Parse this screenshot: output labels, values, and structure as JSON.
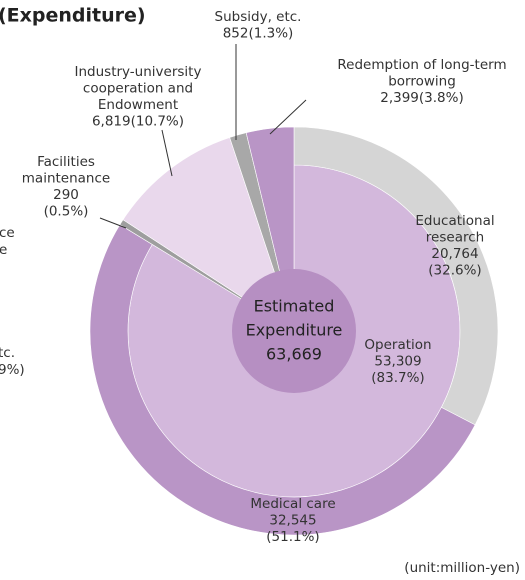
{
  "title": "(Expenditure)",
  "unit_note": "(unit:million-yen)",
  "clipped_labels": [
    "ce",
    "e",
    "tc.",
    "9%)"
  ],
  "chart_data": {
    "type": "pie",
    "center": {
      "name": [
        "Estimated",
        "Expenditure"
      ],
      "value": 63669,
      "value_label": "63,669",
      "color": "#b68fc2"
    },
    "slices": [
      {
        "name": [
          "Operation"
        ],
        "value": 53309,
        "value_label": "53,309",
        "percent": 83.7,
        "percent_label": "(83.7%)",
        "color": "#d3b8dc",
        "children": [
          {
            "name": [
              "Educational",
              "research"
            ],
            "value": 20764,
            "value_label": "20,764",
            "percent": 32.6,
            "percent_label": "(32.6%)",
            "color": "#d5d5d5"
          },
          {
            "name": [
              "Medical care"
            ],
            "value": 32545,
            "value_label": "32,545",
            "percent": 51.1,
            "percent_label": "(51.1%)",
            "color": "#b995c6"
          }
        ]
      },
      {
        "name": [
          "Facilities",
          "maintenance"
        ],
        "value": 290,
        "value_label": "290",
        "percent": 0.5,
        "percent_label": "(0.5%)",
        "color": "#9e9e9e"
      },
      {
        "name": [
          "Industry-university",
          "cooperation and",
          "Endowment"
        ],
        "value": 6819,
        "value_label": "6,819",
        "percent": 10.7,
        "percent_label": "(10.7%)",
        "color": "#e9d8ec"
      },
      {
        "name": [
          "Subsidy, etc."
        ],
        "value": 852,
        "value_label": "852",
        "percent": 1.3,
        "percent_label": "(1.3%)",
        "color": "#a8a8a8"
      },
      {
        "name": [
          "Redemption of long-term",
          "borrowing"
        ],
        "value": 2399,
        "value_label": "2,399",
        "percent": 3.8,
        "percent_label": "(3.8%)",
        "color": "#b995c6"
      }
    ]
  }
}
